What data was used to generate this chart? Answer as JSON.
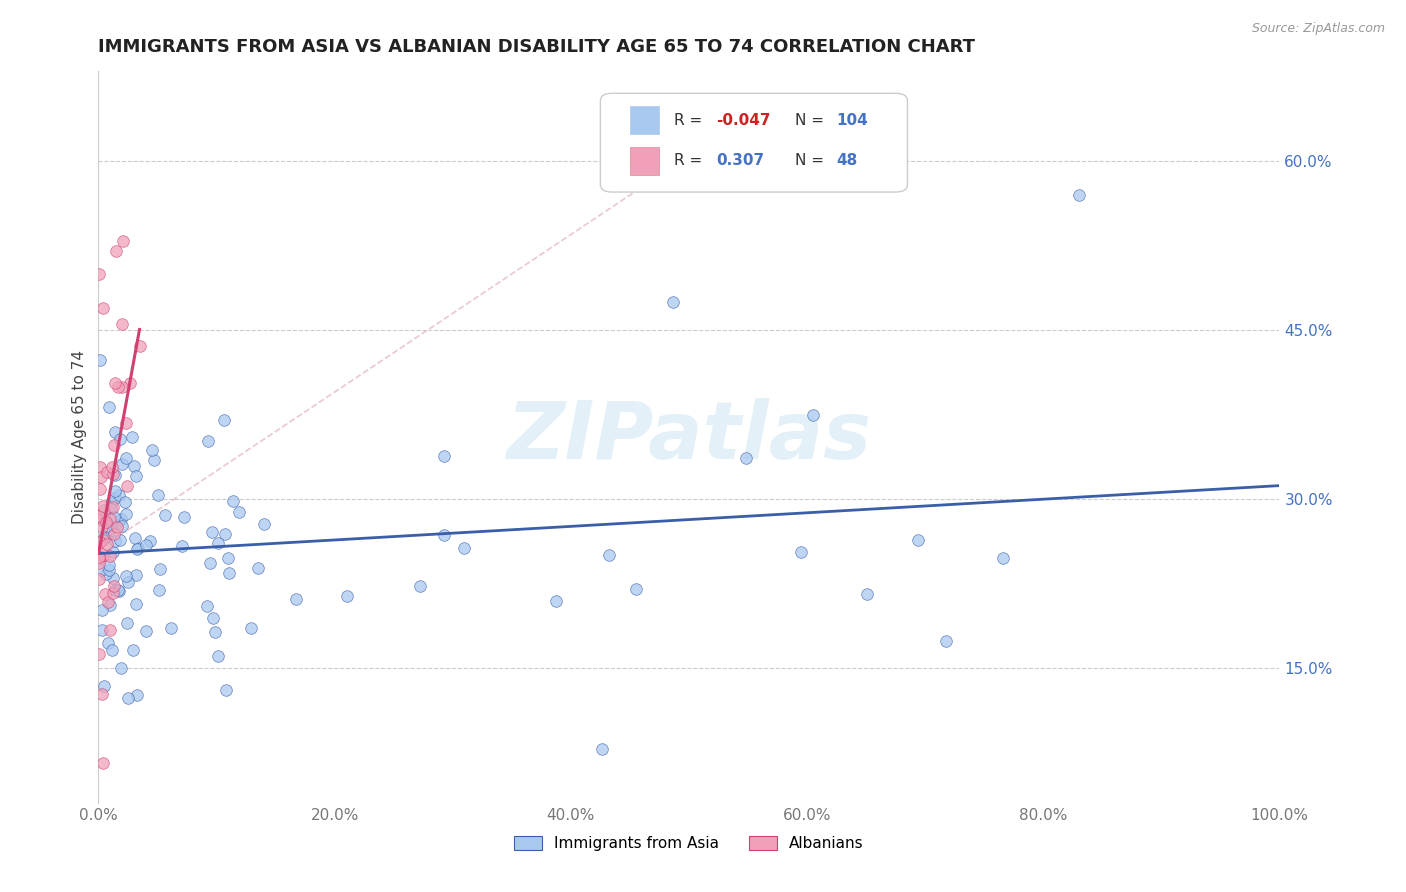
{
  "title": "IMMIGRANTS FROM ASIA VS ALBANIAN DISABILITY AGE 65 TO 74 CORRELATION CHART",
  "source": "Source: ZipAtlas.com",
  "ylabel": "Disability Age 65 to 74",
  "xlim": [
    0.0,
    1.0
  ],
  "ylim": [
    0.03,
    0.68
  ],
  "xticks": [
    0.0,
    0.2,
    0.4,
    0.6,
    0.8,
    1.0
  ],
  "xticklabels": [
    "0.0%",
    "20.0%",
    "40.0%",
    "60.0%",
    "80.0%",
    "100.0%"
  ],
  "yticks": [
    0.15,
    0.3,
    0.45,
    0.6
  ],
  "yticklabels": [
    "15.0%",
    "30.0%",
    "45.0%",
    "60.0%"
  ],
  "watermark": "ZIPatlas",
  "color_asia": "#a8c8f0",
  "color_albanian": "#f0a0b8",
  "color_line_asia": "#3a5fa8",
  "color_line_albanian": "#d04070",
  "color_dashed": "#d0a0b0",
  "title_fontsize": 13,
  "axis_label_fontsize": 11,
  "tick_fontsize": 11,
  "background_color": "#ffffff",
  "legend_asia_r": "-0.047",
  "legend_asia_n": "104",
  "legend_alb_r": "0.307",
  "legend_alb_n": "48"
}
